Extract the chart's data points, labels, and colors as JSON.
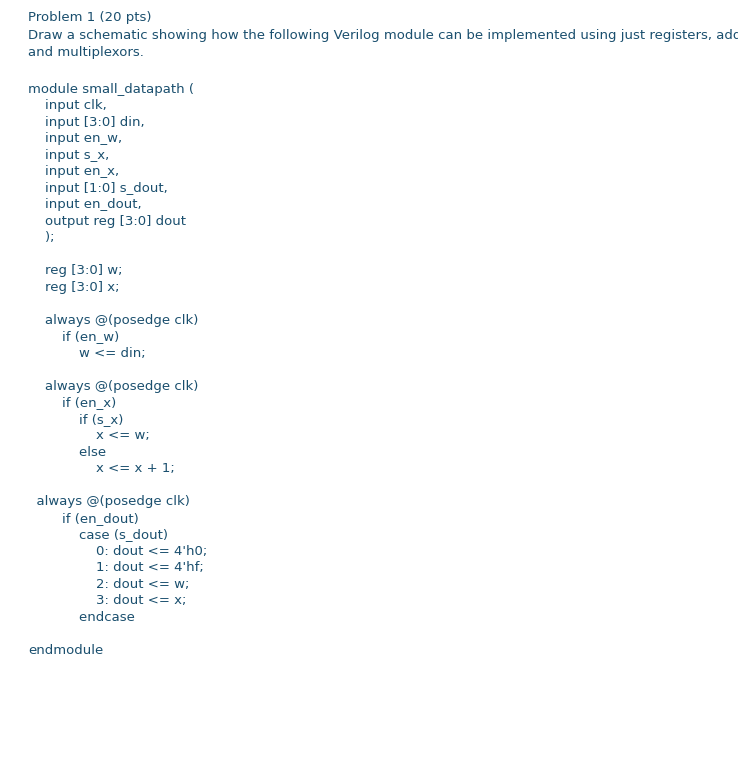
{
  "background_color": "#ffffff",
  "text_color": "#1a4f6e",
  "figsize": [
    7.38,
    7.66
  ],
  "dpi": 100,
  "title_fontsize": 9.5,
  "code_fontsize": 9.5,
  "header_lines": [
    "Problem 1 (20 pts)",
    "Draw a schematic showing how the following Verilog module can be implemented using just registers, adders,",
    "and multiplexors."
  ],
  "code_lines": [
    "module small_datapath (",
    "    input clk,",
    "    input [3:0] din,",
    "    input en_w,",
    "    input s_x,",
    "    input en_x,",
    "    input [1:0] s_dout,",
    "    input en_dout,",
    "    output reg [3:0] dout",
    "    );",
    "",
    "    reg [3:0] w;",
    "    reg [3:0] x;",
    "",
    "    always @(posedge clk)",
    "        if (en_w)",
    "            w <= din;",
    "",
    "    always @(posedge clk)",
    "        if (en_x)",
    "            if (s_x)",
    "                x <= w;",
    "            else",
    "                x <= x + 1;",
    "",
    "  always @(posedge clk)",
    "        if (en_dout)",
    "            case (s_dout)",
    "                0: dout <= 4'h0;",
    "                1: dout <= 4'hf;",
    "                2: dout <= w;",
    "                3: dout <= x;",
    "            endcase",
    "",
    "endmodule"
  ]
}
